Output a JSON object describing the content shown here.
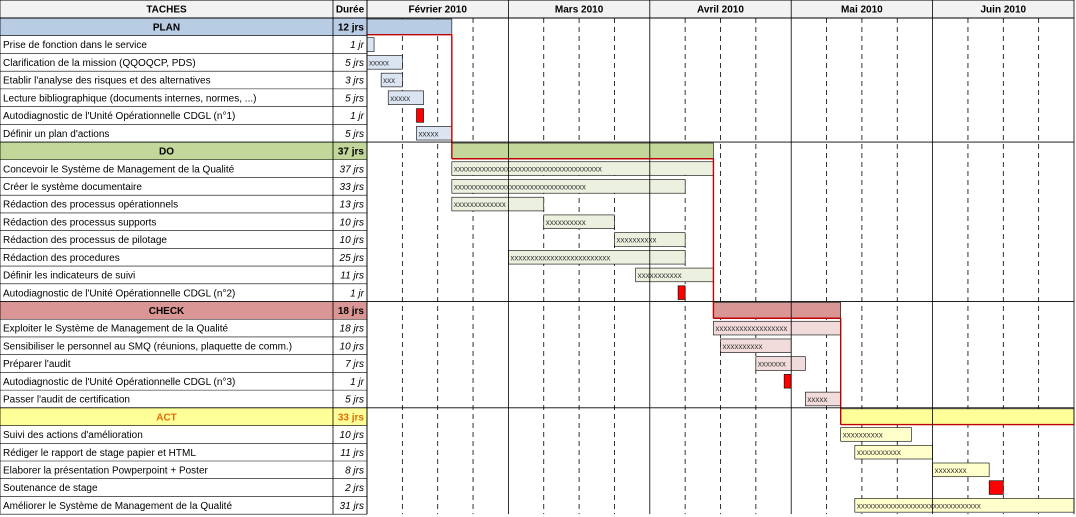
{
  "header": {
    "tasks_label": "TACHES",
    "duration_label": "Durée",
    "months": [
      "Février 2010",
      "Mars 2010",
      "Avril 2010",
      "Mai 2010",
      "Juin 2010"
    ]
  },
  "colors": {
    "plan": "#b8cce4",
    "plan_light": "#dbe5f1",
    "do": "#c4d79b",
    "do_light": "#ebf1de",
    "check": "#da9694",
    "check_light": "#f2dcdb",
    "act": "#ffff99",
    "act_light": "#ffffcc",
    "milestone": "#ff0000",
    "link": "#c00000",
    "act_text": "#e46c0a"
  },
  "chart_data": {
    "type": "gantt",
    "units": "jours ouvrés",
    "phases": [
      {
        "name": "PLAN",
        "duration": "12 jrs",
        "color_key": "plan",
        "span": [
          0,
          12
        ],
        "tasks": [
          {
            "name": "Prise de fonction dans le service",
            "duration": "1 jr",
            "start": 0,
            "end": 1
          },
          {
            "name": "Clarification de la mission (QQOQCP, PDS)",
            "duration": "5 jrs",
            "start": 0,
            "end": 5
          },
          {
            "name": "Etablir l'analyse des risques et des alternatives",
            "duration": "3 jrs",
            "start": 2,
            "end": 5
          },
          {
            "name": "Lecture bibliographique (documents internes, normes, ...)",
            "duration": "5 jrs",
            "start": 3,
            "end": 8
          },
          {
            "name": "Autodiagnostic de l'Unité Opérationnelle CDGL (n°1)",
            "duration": "1 jr",
            "start": 7,
            "end": 8,
            "milestone": true
          },
          {
            "name": "Définir un plan d'actions",
            "duration": "5 jrs",
            "start": 7,
            "end": 12
          }
        ]
      },
      {
        "name": "DO",
        "duration": "37 jrs",
        "color_key": "do",
        "span": [
          12,
          49
        ],
        "tasks": [
          {
            "name": "Concevoir le Système de Management de la Qualité",
            "duration": "37 jrs",
            "start": 12,
            "end": 49
          },
          {
            "name": "Créer le système documentaire",
            "duration": "33 jrs",
            "start": 12,
            "end": 45
          },
          {
            "name": "Rédaction des processus opérationnels",
            "duration": "13 jrs",
            "start": 12,
            "end": 25
          },
          {
            "name": "Rédaction des processus supports",
            "duration": "10 jrs",
            "start": 25,
            "end": 35
          },
          {
            "name": "Rédaction des processus de pilotage",
            "duration": "10 jrs",
            "start": 35,
            "end": 45
          },
          {
            "name": "Rédaction des procedures",
            "duration": "25 jrs",
            "start": 20,
            "end": 45
          },
          {
            "name": "Définir les indicateurs de suivi",
            "duration": "11 jrs",
            "start": 38,
            "end": 49
          },
          {
            "name": "Autodiagnostic de l'Unité Opérationnelle CDGL (n°2)",
            "duration": "1 jr",
            "start": 44,
            "end": 45,
            "milestone": true
          }
        ]
      },
      {
        "name": "CHECK",
        "duration": "18 jrs",
        "color_key": "check",
        "span": [
          49,
          67
        ],
        "tasks": [
          {
            "name": "Exploiter le Système de Management de la Qualité",
            "duration": "18 jrs",
            "start": 49,
            "end": 67
          },
          {
            "name": "Sensibiliser le personnel au SMQ (réunions, plaquette de comm.)",
            "duration": "10 jrs",
            "start": 50,
            "end": 60
          },
          {
            "name": "Préparer l'audit",
            "duration": "7 jrs",
            "start": 55,
            "end": 62
          },
          {
            "name": "Autodiagnostic de l'Unité Opérationnelle CDGL (n°3)",
            "duration": "1 jr",
            "start": 59,
            "end": 60,
            "milestone": true
          },
          {
            "name": "Passer l'audit de certification",
            "duration": "5 jrs",
            "start": 62,
            "end": 67
          }
        ]
      },
      {
        "name": "ACT",
        "duration": "33 jrs",
        "color_key": "act",
        "span": [
          67,
          100
        ],
        "tasks": [
          {
            "name": "Suivi des actions d'amélioration",
            "duration": "10 jrs",
            "start": 67,
            "end": 77
          },
          {
            "name": "Rédiger le rapport de stage papier et HTML",
            "duration": "11 jrs",
            "start": 69,
            "end": 80
          },
          {
            "name": "Elaborer la présentation Powperpoint + Poster",
            "duration": "8 jrs",
            "start": 80,
            "end": 88
          },
          {
            "name": "Soutenance de stage",
            "duration": "2 jrs",
            "start": 88,
            "end": 90,
            "milestone": true
          },
          {
            "name": "Améliorer le Système de Management de la Qualité",
            "duration": "31 jrs",
            "start": 69,
            "end": 100
          }
        ]
      }
    ]
  }
}
